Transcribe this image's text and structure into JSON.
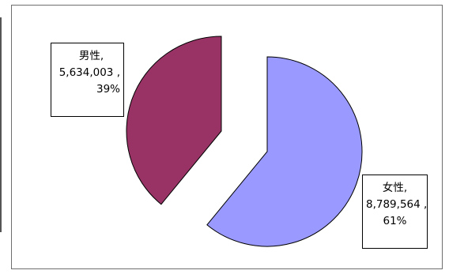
{
  "colors": {
    "male_slice": "#993366",
    "female_slice": "#9999ff",
    "outline": "#000000"
  },
  "chart_data": {
    "type": "pie",
    "title": "",
    "start": "12 o'clock, clockwise, first slice = 女性",
    "exploded": true,
    "slices": [
      {
        "label": "女性",
        "value_text": "8,789,564",
        "value": 8789564,
        "percent_text": "61%",
        "percent": 61,
        "color": "#9999ff",
        "callout_placement": "bottom-right"
      },
      {
        "label": "男性",
        "value_text": "5,634,003",
        "value": 5634003,
        "percent_text": "39%",
        "percent": 39,
        "color": "#993366",
        "callout_placement": "top-left"
      }
    ]
  }
}
